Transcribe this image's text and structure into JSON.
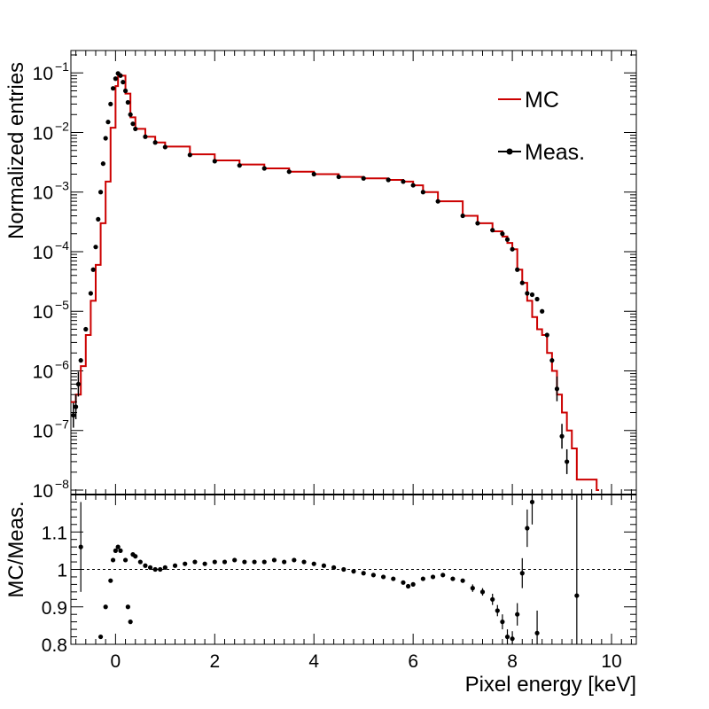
{
  "chart_data": [
    {
      "type": "line",
      "panel": "top",
      "title": "",
      "ylabel": "Normalized entries",
      "xlim": [
        -0.9,
        10.5
      ],
      "ylim": [
        1e-08,
        0.2
      ],
      "yscale": "log",
      "ytick_labels": [
        {
          "v": 1e-08,
          "base": "10",
          "exp": "−8"
        },
        {
          "v": 1e-07,
          "base": "10",
          "exp": "−7"
        },
        {
          "v": 1e-06,
          "base": "10",
          "exp": "−6"
        },
        {
          "v": 1e-05,
          "base": "10",
          "exp": "−5"
        },
        {
          "v": 0.0001,
          "base": "10",
          "exp": "−4"
        },
        {
          "v": 0.001,
          "base": "10",
          "exp": "−3"
        },
        {
          "v": 0.01,
          "base": "10",
          "exp": "−2"
        },
        {
          "v": 0.1,
          "base": "10",
          "exp": "−1"
        }
      ],
      "legend": {
        "placement": "top-right",
        "entries": [
          "MC",
          "Meas."
        ]
      },
      "series": [
        {
          "name": "MC",
          "style": "step",
          "color": "#cc0000",
          "points": [
            [
              -0.9,
              3e-07
            ],
            [
              -0.8,
              4e-07
            ],
            [
              -0.7,
              1.2e-06
            ],
            [
              -0.6,
              4e-06
            ],
            [
              -0.5,
              1.5e-05
            ],
            [
              -0.4,
              6e-05
            ],
            [
              -0.3,
              0.0003
            ],
            [
              -0.2,
              0.0015
            ],
            [
              -0.1,
              0.012
            ],
            [
              0.0,
              0.06
            ],
            [
              0.05,
              0.095
            ],
            [
              0.1,
              0.09
            ],
            [
              0.2,
              0.045
            ],
            [
              0.3,
              0.018
            ],
            [
              0.4,
              0.0115
            ],
            [
              0.6,
              0.0085
            ],
            [
              0.8,
              0.0068
            ],
            [
              1.0,
              0.0058
            ],
            [
              1.5,
              0.0043
            ],
            [
              2.0,
              0.0034
            ],
            [
              2.5,
              0.0029
            ],
            [
              3.0,
              0.0025
            ],
            [
              3.5,
              0.0022
            ],
            [
              4.0,
              0.002
            ],
            [
              4.5,
              0.0018
            ],
            [
              5.0,
              0.0017
            ],
            [
              5.5,
              0.0016
            ],
            [
              5.8,
              0.0015
            ],
            [
              6.0,
              0.0013
            ],
            [
              6.2,
              0.001
            ],
            [
              6.5,
              0.0007
            ],
            [
              7.0,
              0.0004
            ],
            [
              7.3,
              0.0003
            ],
            [
              7.6,
              0.00022
            ],
            [
              7.8,
              0.00018
            ],
            [
              7.9,
              0.00014
            ],
            [
              8.0,
              0.00011
            ],
            [
              8.1,
              5e-05
            ],
            [
              8.2,
              3e-05
            ],
            [
              8.3,
              1.5e-05
            ],
            [
              8.4,
              8e-06
            ],
            [
              8.5,
              5e-06
            ],
            [
              8.6,
              4e-06
            ],
            [
              8.7,
              2e-06
            ],
            [
              8.8,
              1e-06
            ],
            [
              8.9,
              4e-07
            ],
            [
              9.0,
              2e-07
            ],
            [
              9.1,
              1e-07
            ],
            [
              9.2,
              5e-08
            ],
            [
              9.3,
              1.5e-08
            ],
            [
              9.6,
              1.5e-08
            ],
            [
              9.7,
              1e-08
            ]
          ]
        },
        {
          "name": "Meas.",
          "style": "markers",
          "color": "#000000",
          "points": [
            [
              -0.85,
              1.8e-07
            ],
            [
              -0.8,
              2.5e-07
            ],
            [
              -0.75,
              6e-07
            ],
            [
              -0.7,
              1.5e-06
            ],
            [
              -0.6,
              5e-06
            ],
            [
              -0.5,
              2e-05
            ],
            [
              -0.45,
              5e-05
            ],
            [
              -0.4,
              0.00012
            ],
            [
              -0.35,
              0.00035
            ],
            [
              -0.3,
              0.001
            ],
            [
              -0.25,
              0.003
            ],
            [
              -0.2,
              0.008
            ],
            [
              -0.15,
              0.015
            ],
            [
              -0.1,
              0.03
            ],
            [
              -0.05,
              0.055
            ],
            [
              0.0,
              0.08
            ],
            [
              0.05,
              0.098
            ],
            [
              0.1,
              0.09
            ],
            [
              0.15,
              0.07
            ],
            [
              0.2,
              0.05
            ],
            [
              0.25,
              0.032
            ],
            [
              0.3,
              0.02
            ],
            [
              0.35,
              0.014
            ],
            [
              0.4,
              0.0115
            ],
            [
              0.6,
              0.0085
            ],
            [
              0.8,
              0.0068
            ],
            [
              1.0,
              0.0057
            ],
            [
              1.5,
              0.0042
            ],
            [
              2.0,
              0.0033
            ],
            [
              2.5,
              0.0028
            ],
            [
              3.0,
              0.0025
            ],
            [
              3.5,
              0.0022
            ],
            [
              4.0,
              0.002
            ],
            [
              4.5,
              0.0018
            ],
            [
              5.0,
              0.0017
            ],
            [
              5.5,
              0.0016
            ],
            [
              5.8,
              0.0015
            ],
            [
              6.0,
              0.0013
            ],
            [
              6.2,
              0.001
            ],
            [
              6.5,
              0.0007
            ],
            [
              7.0,
              0.0004
            ],
            [
              7.3,
              0.0003
            ],
            [
              7.6,
              0.00023
            ],
            [
              7.8,
              0.0002
            ],
            [
              7.9,
              0.00016
            ],
            [
              8.0,
              0.00011
            ],
            [
              8.1,
              5e-05
            ],
            [
              8.2,
              3e-05
            ],
            [
              8.3,
              2e-05
            ],
            [
              8.4,
              1.9e-05
            ],
            [
              8.5,
              1.6e-05
            ],
            [
              8.6,
              1e-05
            ],
            [
              8.7,
              4e-06
            ],
            [
              8.8,
              1.5e-06
            ],
            [
              8.9,
              5e-07
            ],
            [
              9.0,
              8e-08
            ],
            [
              9.1,
              3e-08
            ]
          ]
        }
      ]
    },
    {
      "type": "scatter",
      "panel": "bottom",
      "xlabel": "Pixel energy [keV]",
      "ylabel": "MC/Meas.",
      "xlim": [
        -0.9,
        10.5
      ],
      "ylim": [
        0.8,
        1.2
      ],
      "xtick_labels": [
        "0",
        "2",
        "4",
        "6",
        "8",
        "10"
      ],
      "xtick_values": [
        0,
        2,
        4,
        6,
        8,
        10
      ],
      "ytick_labels": [
        "0.8",
        "0.9",
        "1",
        "1.1"
      ],
      "ytick_values": [
        0.8,
        0.9,
        1.0,
        1.1
      ],
      "reference_line": 1.0,
      "series": [
        {
          "name": "MC/Meas.",
          "color": "#000000",
          "points": [
            [
              -0.7,
              1.06,
              0.12
            ],
            [
              -0.3,
              0.82,
              0.0
            ],
            [
              -0.2,
              0.9,
              0.0
            ],
            [
              -0.1,
              0.97,
              0.0
            ],
            [
              -0.05,
              1.025,
              0.0
            ],
            [
              0.0,
              1.05,
              0.0
            ],
            [
              0.05,
              1.06,
              0.0
            ],
            [
              0.1,
              1.05,
              0.0
            ],
            [
              0.2,
              1.025,
              0.0
            ],
            [
              0.25,
              0.9,
              0.0
            ],
            [
              0.3,
              0.86,
              0.0
            ],
            [
              0.35,
              1.04,
              0.0
            ],
            [
              0.4,
              1.035,
              0.0
            ],
            [
              0.5,
              1.02,
              0.0
            ],
            [
              0.6,
              1.01,
              0.0
            ],
            [
              0.7,
              1.005,
              0.0
            ],
            [
              0.8,
              1.0,
              0.0
            ],
            [
              0.9,
              1.0,
              0.0
            ],
            [
              1.0,
              1.005,
              0.0
            ],
            [
              1.2,
              1.01,
              0.0
            ],
            [
              1.4,
              1.015,
              0.0
            ],
            [
              1.6,
              1.02,
              0.0
            ],
            [
              1.8,
              1.015,
              0.0
            ],
            [
              2.0,
              1.02,
              0.0
            ],
            [
              2.2,
              1.02,
              0.0
            ],
            [
              2.4,
              1.025,
              0.0
            ],
            [
              2.6,
              1.02,
              0.0
            ],
            [
              2.8,
              1.02,
              0.0
            ],
            [
              3.0,
              1.02,
              0.0
            ],
            [
              3.2,
              1.025,
              0.0
            ],
            [
              3.4,
              1.02,
              0.0
            ],
            [
              3.6,
              1.025,
              0.0
            ],
            [
              3.8,
              1.02,
              0.0
            ],
            [
              4.0,
              1.015,
              0.0
            ],
            [
              4.2,
              1.01,
              0.0
            ],
            [
              4.4,
              1.005,
              0.0
            ],
            [
              4.6,
              1.0,
              0.0
            ],
            [
              4.8,
              0.995,
              0.0
            ],
            [
              5.0,
              0.99,
              0.0
            ],
            [
              5.2,
              0.985,
              0.0
            ],
            [
              5.4,
              0.98,
              0.0
            ],
            [
              5.6,
              0.975,
              0.0
            ],
            [
              5.8,
              0.965,
              0.0
            ],
            [
              5.9,
              0.955,
              0.0
            ],
            [
              6.0,
              0.96,
              0.0
            ],
            [
              6.2,
              0.975,
              0.0
            ],
            [
              6.4,
              0.98,
              0.0
            ],
            [
              6.6,
              0.985,
              0.0
            ],
            [
              6.8,
              0.975,
              0.0
            ],
            [
              7.0,
              0.97,
              0.0
            ],
            [
              7.2,
              0.95,
              0.01
            ],
            [
              7.4,
              0.94,
              0.01
            ],
            [
              7.6,
              0.92,
              0.015
            ],
            [
              7.7,
              0.89,
              0.015
            ],
            [
              7.8,
              0.86,
              0.02
            ],
            [
              7.9,
              0.82,
              0.02
            ],
            [
              8.0,
              0.815,
              0.02
            ],
            [
              8.1,
              0.88,
              0.03
            ],
            [
              8.2,
              0.99,
              0.04
            ],
            [
              8.3,
              1.11,
              0.05
            ],
            [
              8.4,
              1.18,
              0.06
            ],
            [
              8.5,
              0.83,
              0.06
            ],
            [
              9.3,
              0.93,
              0.3
            ]
          ]
        }
      ]
    }
  ],
  "legend": {
    "mc_label": "MC",
    "meas_label": "Meas."
  },
  "axes": {
    "top_ylabel": "Normalized entries",
    "bottom_ylabel": "MC/Meas.",
    "xlabel": "Pixel energy [keV]"
  }
}
